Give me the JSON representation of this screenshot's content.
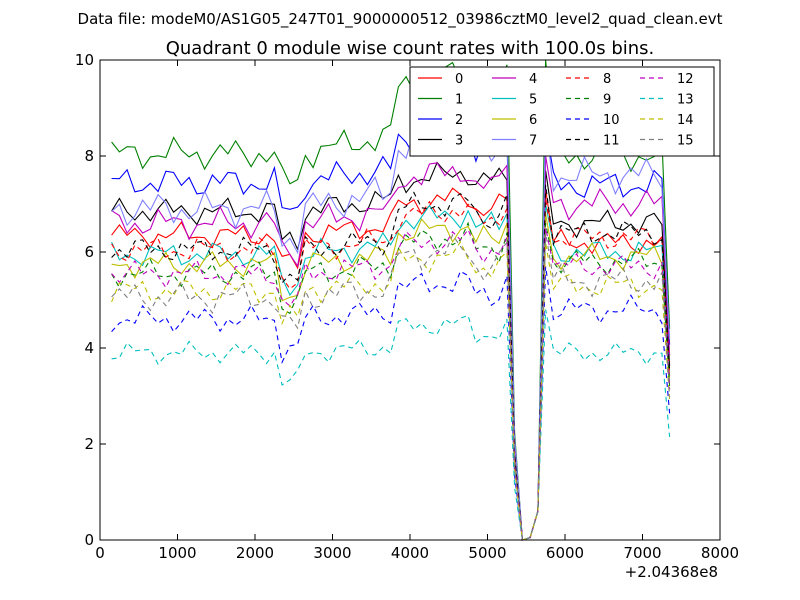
{
  "suptitle": "Data file: modeM0/AS1G05_247T01_9000000512_03986cztM0_level2_quad_clean.evt",
  "chart_data": {
    "type": "line",
    "title": "Quadrant 0 module wise count rates with 100.0s bins.",
    "xlabel": "",
    "ylabel": "",
    "x_offset_label": "+2.04368e8",
    "xlim": [
      0,
      8000
    ],
    "ylim": [
      0,
      10
    ],
    "xticks": [
      0,
      1000,
      2000,
      3000,
      4000,
      5000,
      6000,
      7000,
      8000
    ],
    "yticks": [
      0,
      2,
      4,
      6,
      8,
      10
    ],
    "grid": false,
    "legend_location": "top-right",
    "legend_columns": 4,
    "x": [
      150,
      250,
      350,
      450,
      550,
      650,
      750,
      850,
      950,
      1050,
      1150,
      1250,
      1350,
      1450,
      1550,
      1650,
      1750,
      1850,
      1950,
      2050,
      2150,
      2250,
      2350,
      2450,
      2550,
      2650,
      2750,
      2850,
      2950,
      3050,
      3150,
      3250,
      3350,
      3450,
      3550,
      3650,
      3750,
      3850,
      3950,
      4050,
      4150,
      4250,
      4350,
      4450,
      4550,
      4650,
      4750,
      4850,
      4950,
      5050,
      5150,
      5250,
      5350,
      5450,
      5550,
      5650,
      5750,
      5850,
      5950,
      6050,
      6150,
      6250,
      6350,
      6450,
      6550,
      6650,
      6750,
      6850,
      6950,
      7050,
      7150,
      7250,
      7350
    ],
    "series": [
      {
        "name": "0",
        "color": "#ff0000",
        "style": "solid",
        "base": 6.35,
        "slope": 0.25,
        "amp": 0.28,
        "peak": 7.1,
        "after": 6.2
      },
      {
        "name": "1",
        "color": "#008000",
        "style": "solid",
        "base": 8.05,
        "slope": 0.45,
        "amp": 0.35,
        "peak": 9.9,
        "after": 8.0
      },
      {
        "name": "2",
        "color": "#0000ff",
        "style": "solid",
        "base": 7.45,
        "slope": 0.35,
        "amp": 0.35,
        "peak": 8.4,
        "after": 7.4
      },
      {
        "name": "3",
        "color": "#000000",
        "style": "solid",
        "base": 6.85,
        "slope": 0.3,
        "amp": 0.3,
        "peak": 7.5,
        "after": 6.6
      },
      {
        "name": "4",
        "color": "#bf00bf",
        "style": "solid",
        "base": 6.6,
        "slope": 0.3,
        "amp": 0.35,
        "peak": 7.8,
        "after": 7.0
      },
      {
        "name": "5",
        "color": "#00bfbf",
        "style": "solid",
        "base": 5.95,
        "slope": 0.25,
        "amp": 0.3,
        "peak": 6.8,
        "after": 6.0
      },
      {
        "name": "6",
        "color": "#bfbf00",
        "style": "solid",
        "base": 5.75,
        "slope": 0.2,
        "amp": 0.3,
        "peak": 6.6,
        "after": 5.9
      },
      {
        "name": "7",
        "color": "#8080ff",
        "style": "solid",
        "base": 6.9,
        "slope": 0.45,
        "amp": 0.4,
        "peak": 8.6,
        "after": 7.6
      },
      {
        "name": "8",
        "color": "#ff0000",
        "style": "dashed",
        "base": 6.05,
        "slope": 0.25,
        "amp": 0.3,
        "peak": 6.9,
        "after": 6.3
      },
      {
        "name": "9",
        "color": "#008000",
        "style": "dashed",
        "base": 5.55,
        "slope": 0.2,
        "amp": 0.3,
        "peak": 6.4,
        "after": 5.8
      },
      {
        "name": "10",
        "color": "#0000ff",
        "style": "dashed",
        "base": 4.6,
        "slope": 0.2,
        "amp": 0.3,
        "peak": 5.5,
        "after": 4.8
      },
      {
        "name": "11",
        "color": "#000000",
        "style": "dashed",
        "base": 6.05,
        "slope": 0.25,
        "amp": 0.3,
        "peak": 7.2,
        "after": 6.4
      },
      {
        "name": "12",
        "color": "#bf00bf",
        "style": "dashed",
        "base": 5.55,
        "slope": 0.2,
        "amp": 0.3,
        "peak": 6.3,
        "after": 5.7
      },
      {
        "name": "13",
        "color": "#00bfbf",
        "style": "dashed",
        "base": 3.9,
        "slope": 0.15,
        "amp": 0.25,
        "peak": 4.6,
        "after": 3.9
      },
      {
        "name": "14",
        "color": "#bfbf00",
        "style": "dashed",
        "base": 5.2,
        "slope": 0.2,
        "amp": 0.3,
        "peak": 6.0,
        "after": 5.3
      },
      {
        "name": "15",
        "color": "#808080",
        "style": "dashed",
        "base": 5.05,
        "slope": 0.25,
        "amp": 0.35,
        "peak": 6.2,
        "after": 5.4
      }
    ]
  }
}
